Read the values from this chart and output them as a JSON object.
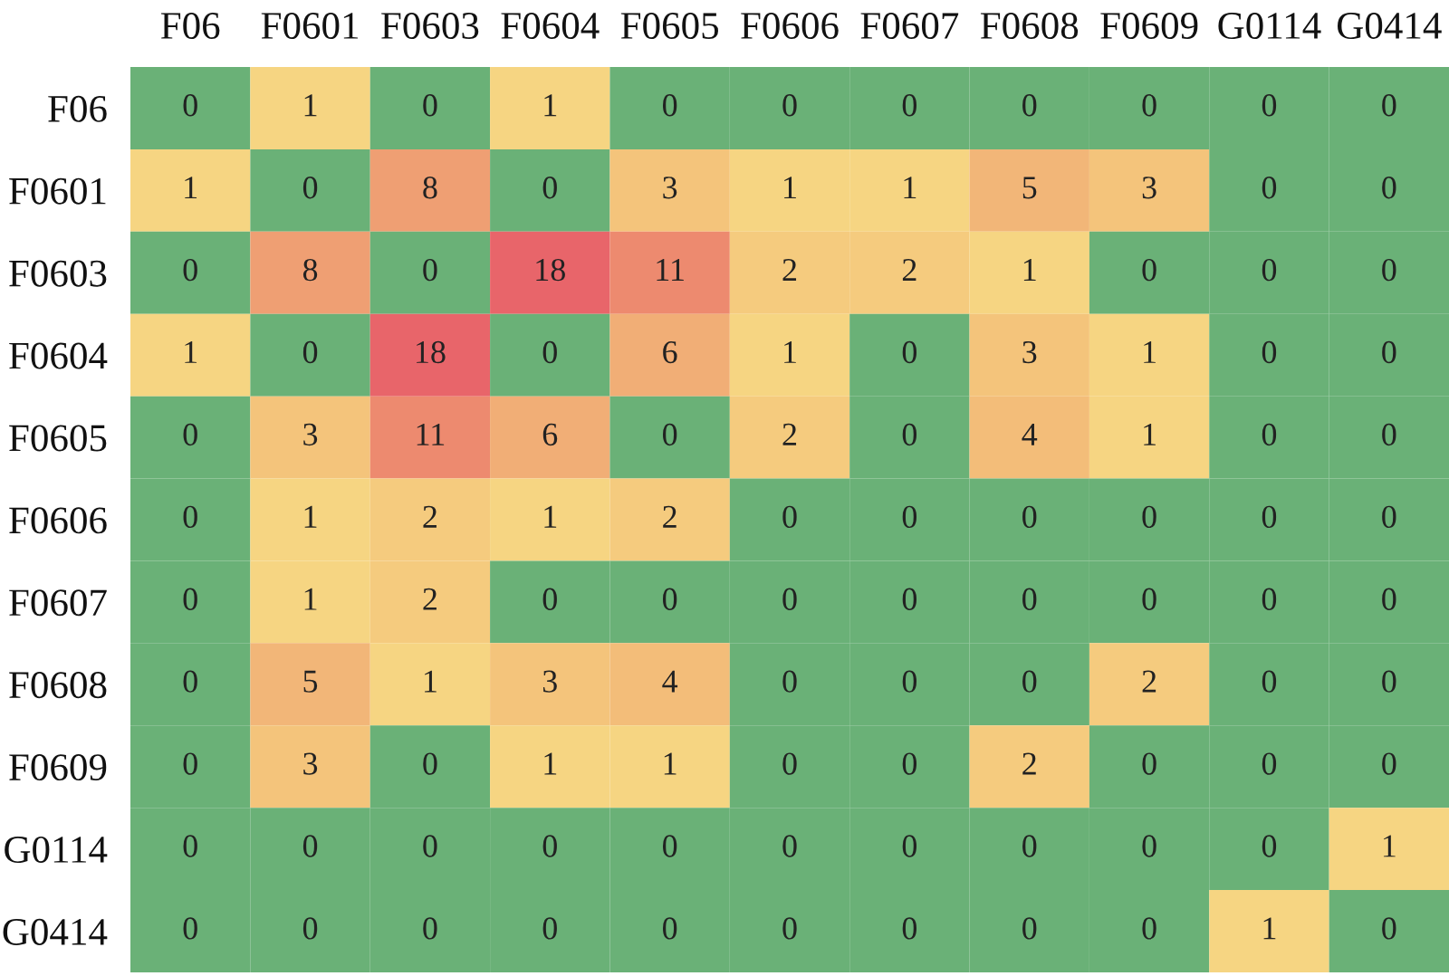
{
  "chart_data": {
    "type": "heatmap",
    "categories": [
      "F06",
      "F0601",
      "F0603",
      "F0604",
      "F0605",
      "F0606",
      "F0607",
      "F0608",
      "F0609",
      "G0114",
      "G0414"
    ],
    "y_categories": [
      "F06",
      "F0601",
      "F0603",
      "F0604",
      "F0605",
      "F0606",
      "F0607",
      "F0608",
      "F0609",
      "G0114",
      "G0414"
    ],
    "cells": [
      [
        0,
        1,
        0,
        1,
        0,
        0,
        0,
        0,
        0,
        0,
        0
      ],
      [
        1,
        0,
        8,
        0,
        3,
        1,
        1,
        5,
        3,
        0,
        0
      ],
      [
        0,
        8,
        0,
        18,
        11,
        2,
        2,
        1,
        0,
        0,
        0
      ],
      [
        1,
        0,
        18,
        0,
        6,
        1,
        0,
        3,
        1,
        0,
        0
      ],
      [
        0,
        3,
        11,
        6,
        0,
        2,
        0,
        4,
        1,
        0,
        0
      ],
      [
        0,
        1,
        2,
        1,
        2,
        0,
        0,
        0,
        0,
        0,
        0
      ],
      [
        0,
        1,
        2,
        0,
        0,
        0,
        0,
        0,
        0,
        0,
        0
      ],
      [
        0,
        5,
        1,
        3,
        4,
        0,
        0,
        0,
        2,
        0,
        0
      ],
      [
        0,
        3,
        0,
        1,
        1,
        0,
        0,
        2,
        0,
        0,
        0
      ],
      [
        0,
        0,
        0,
        0,
        0,
        0,
        0,
        0,
        0,
        0,
        1
      ],
      [
        0,
        0,
        0,
        0,
        0,
        0,
        0,
        0,
        0,
        1,
        0
      ]
    ],
    "colors": [
      [
        "#6ab177",
        "#f6d582",
        "#6ab177",
        "#f6d582",
        "#6ab177",
        "#6ab177",
        "#6ab177",
        "#6ab177",
        "#6ab177",
        "#6ab177",
        "#6ab177"
      ],
      [
        "#f6d582",
        "#6ab177",
        "#ef9f73",
        "#6ab177",
        "#f4c47b",
        "#f6d582",
        "#f6d582",
        "#f2b678",
        "#f4c47b",
        "#6ab177",
        "#6ab177"
      ],
      [
        "#6ab177",
        "#ef9f73",
        "#6ab177",
        "#e8656a",
        "#ed8a6f",
        "#f5cb7e",
        "#f5cb7e",
        "#f6d582",
        "#6ab177",
        "#6ab177",
        "#6ab177"
      ],
      [
        "#f6d582",
        "#6ab177",
        "#e8656a",
        "#6ab177",
        "#f1ae76",
        "#f6d582",
        "#6ab177",
        "#f4c47b",
        "#f6d582",
        "#6ab177",
        "#6ab177"
      ],
      [
        "#6ab177",
        "#f4c47b",
        "#ed8a6f",
        "#f1ae76",
        "#6ab177",
        "#f5cb7e",
        "#6ab177",
        "#f3bd79",
        "#f6d582",
        "#6ab177",
        "#6ab177"
      ],
      [
        "#6ab177",
        "#f6d582",
        "#f5cb7e",
        "#f6d582",
        "#f5cb7e",
        "#6ab177",
        "#6ab177",
        "#6ab177",
        "#6ab177",
        "#6ab177",
        "#6ab177"
      ],
      [
        "#6ab177",
        "#f6d582",
        "#f5cb7e",
        "#6ab177",
        "#6ab177",
        "#6ab177",
        "#6ab177",
        "#6ab177",
        "#6ab177",
        "#6ab177",
        "#6ab177"
      ],
      [
        "#6ab177",
        "#f2b678",
        "#f6d582",
        "#f4c47b",
        "#f3bd79",
        "#6ab177",
        "#6ab177",
        "#6ab177",
        "#f5cb7e",
        "#6ab177",
        "#6ab177"
      ],
      [
        "#6ab177",
        "#f4c47b",
        "#6ab177",
        "#f6d582",
        "#f6d582",
        "#6ab177",
        "#6ab177",
        "#f5cb7e",
        "#6ab177",
        "#6ab177",
        "#6ab177"
      ],
      [
        "#6ab177",
        "#6ab177",
        "#6ab177",
        "#6ab177",
        "#6ab177",
        "#6ab177",
        "#6ab177",
        "#6ab177",
        "#6ab177",
        "#6ab177",
        "#f6d582"
      ],
      [
        "#6ab177",
        "#6ab177",
        "#6ab177",
        "#6ab177",
        "#6ab177",
        "#6ab177",
        "#6ab177",
        "#6ab177",
        "#6ab177",
        "#f6d582",
        "#6ab177"
      ]
    ],
    "data_labels": true
  }
}
